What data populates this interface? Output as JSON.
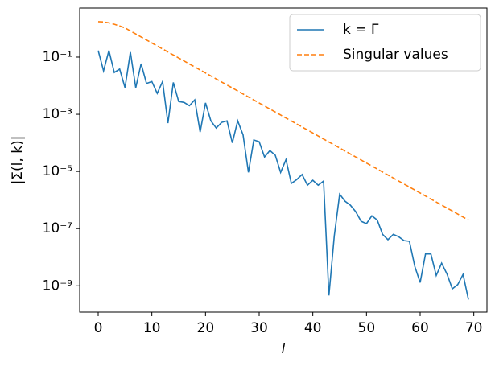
{
  "chart_data": {
    "type": "line",
    "log_y": true,
    "xlabel": "l",
    "ylabel": "|Σ(l, k)|",
    "x": [
      0,
      1,
      2,
      3,
      4,
      5,
      6,
      7,
      8,
      9,
      10,
      11,
      12,
      13,
      14,
      15,
      16,
      17,
      18,
      19,
      20,
      21,
      22,
      23,
      24,
      25,
      26,
      27,
      28,
      29,
      30,
      31,
      32,
      33,
      34,
      35,
      36,
      37,
      38,
      39,
      40,
      41,
      42,
      43,
      44,
      45,
      46,
      47,
      48,
      49,
      50,
      51,
      52,
      53,
      54,
      55,
      56,
      57,
      58,
      59,
      60,
      61,
      62,
      63,
      64,
      65,
      66,
      67,
      68,
      69
    ],
    "series": [
      {
        "name": "k = Γ",
        "color": "#1f77b4",
        "dash": "solid",
        "values": [
          0.17,
          0.033,
          0.17,
          0.029,
          0.038,
          0.0085,
          0.15,
          0.0085,
          0.059,
          0.012,
          0.014,
          0.0054,
          0.014,
          0.00049,
          0.013,
          0.0028,
          0.0026,
          0.002,
          0.0032,
          0.00024,
          0.0025,
          0.00059,
          0.00033,
          0.00052,
          0.00059,
          0.0001,
          0.00059,
          0.00019,
          9.3e-06,
          0.000126,
          0.00011,
          3.2e-05,
          5.4e-05,
          3.7e-05,
          9.3e-06,
          2.6e-05,
          3.8e-06,
          5.2e-06,
          7.8e-06,
          3.3e-06,
          4.9e-06,
          3.3e-06,
          4.6e-06,
          4.6e-10,
          5.6e-08,
          1.6e-06,
          9.1e-07,
          6.6e-07,
          3.9e-07,
          1.8e-07,
          1.5e-07,
          2.8e-07,
          2e-07,
          6.3e-08,
          4.1e-08,
          6.3e-08,
          5.2e-08,
          3.8e-08,
          3.6e-08,
          4.8e-09,
          1.3e-09,
          1.3e-08,
          1.3e-08,
          2.3e-09,
          6.2e-09,
          2.6e-09,
          7.8e-10,
          1.1e-09,
          2.5e-09,
          3.3e-10
        ]
      },
      {
        "name": "Singular values",
        "color": "#ff7f0e",
        "dash": "dashed",
        "values": [
          1.74,
          1.7,
          1.58,
          1.41,
          1.23,
          1.05,
          0.822,
          0.646,
          0.507,
          0.398,
          0.313,
          0.245,
          0.193,
          0.151,
          0.119,
          0.0933,
          0.0733,
          0.0575,
          0.0452,
          0.0355,
          0.0279,
          0.0219,
          0.0172,
          0.0135,
          0.0106,
          0.00832,
          0.00653,
          0.00513,
          0.00403,
          0.00316,
          0.00248,
          0.00195,
          0.00153,
          0.0012,
          0.000944,
          0.000741,
          0.000582,
          0.000457,
          0.000359,
          0.000282,
          0.000221,
          0.000174,
          0.000136,
          0.000107,
          8.41e-05,
          6.61e-05,
          5.19e-05,
          4.07e-05,
          3.2e-05,
          2.51e-05,
          1.97e-05,
          1.55e-05,
          1.22e-05,
          9.55e-06,
          7.5e-06,
          5.89e-06,
          4.62e-06,
          3.63e-06,
          2.85e-06,
          2.24e-06,
          1.76e-06,
          1.38e-06,
          1.08e-06,
          8.51e-07,
          6.68e-07,
          5.25e-07,
          4.12e-07,
          3.24e-07,
          2.54e-07,
          2e-07
        ]
      }
    ],
    "xlim": [
      -3.45,
      72.45
    ],
    "xticks": [
      0,
      10,
      20,
      30,
      40,
      50,
      60,
      70
    ],
    "ylim": [
      1.2e-10,
      5.2
    ],
    "yticks": [
      {
        "value": 0.1,
        "label": "10⁻¹"
      },
      {
        "value": 0.001,
        "label": "10⁻³"
      },
      {
        "value": 1e-05,
        "label": "10⁻⁵"
      },
      {
        "value": 1e-07,
        "label": "10⁻⁷"
      },
      {
        "value": 1e-09,
        "label": "10⁻⁹"
      }
    ],
    "legend": "upper right",
    "grid": false
  }
}
